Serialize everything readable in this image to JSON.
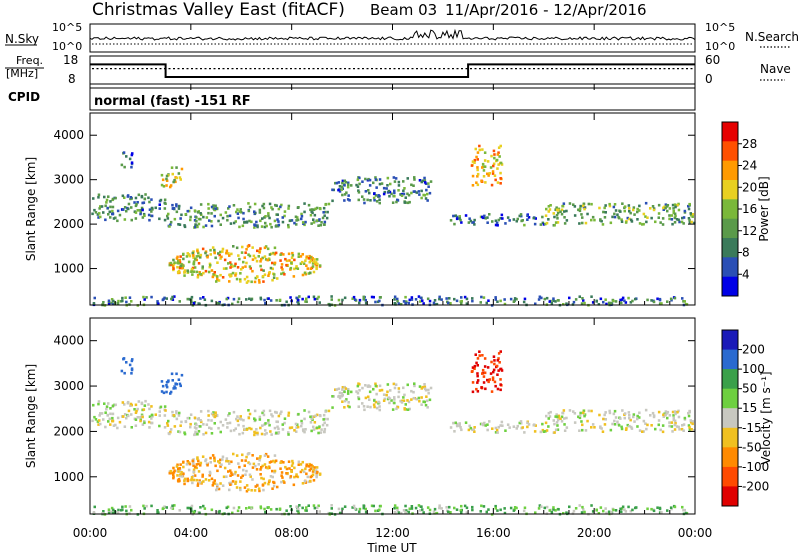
{
  "header": {
    "station": "Christmas Valley East (fitACF)",
    "beam": "Beam 03",
    "date_range": "11/Apr/2016 - 12/Apr/2016"
  },
  "noise_panel": {
    "left_label": "N.Sky",
    "right_label": "N.Search",
    "left_ticks": [
      "10^5",
      "10^0"
    ],
    "right_ticks": [
      "10^5",
      "10^0"
    ]
  },
  "freq_panel": {
    "left_label_1": "Freq.",
    "left_label_2": "[MHz]",
    "right_label": "Nave",
    "left_ticks": [
      "18",
      "8"
    ],
    "right_ticks": [
      "60",
      "0"
    ],
    "freq_steps": [
      {
        "start": 0.0,
        "end": 3.0,
        "value": 15
      },
      {
        "start": 3.0,
        "end": 15.0,
        "value": 10.5
      },
      {
        "start": 15.0,
        "end": 24.0,
        "value": 15
      }
    ],
    "nave_level": 0.55
  },
  "cpid": {
    "label": "CPID",
    "mode": "normal (fast) -151 RF"
  },
  "power_panel": {
    "ylabel": "Slant Range [km]",
    "yticks": [
      "4000",
      "3000",
      "2000",
      "1000"
    ],
    "colorbar_label": "Power [dB]",
    "colorbar_ticks": [
      "28",
      "24",
      "20",
      "16",
      "12",
      "8",
      "4"
    ],
    "colors": [
      "#0000e6",
      "#2a4fb5",
      "#3a7a5a",
      "#5a9a4a",
      "#7ab83a",
      "#e8d020",
      "#ff9a00",
      "#ff5000",
      "#e60000"
    ]
  },
  "velocity_panel": {
    "ylabel": "Slant Range [km]",
    "yticks": [
      "4000",
      "3000",
      "2000",
      "1000"
    ],
    "colorbar_label": "Velocity [m s⁻¹]",
    "colorbar_ticks": [
      "200",
      "100",
      "50",
      "15",
      "-15",
      "-50",
      "-100",
      "-200"
    ],
    "colors": [
      "#1a1ab8",
      "#2a6ad0",
      "#3aa04a",
      "#6ed040",
      "#c8c8c0",
      "#f0c020",
      "#ff8a00",
      "#ff4a00",
      "#e00000"
    ]
  },
  "xaxis": {
    "label": "Time UT",
    "ticks": [
      "00:00",
      "04:00",
      "08:00",
      "12:00",
      "16:00",
      "20:00",
      "00:00"
    ]
  },
  "chart_data": {
    "type": "heatmap",
    "title": "Christmas Valley East (fitACF) Beam 03 11/Apr/2016 - 12/Apr/2016",
    "xlabel": "Time UT",
    "ylabel": "Slant Range [km]",
    "xlim_hours": [
      0,
      24
    ],
    "ylim_km": [
      180,
      4500
    ],
    "scatter_regions": [
      {
        "t0": 0.0,
        "t1": 3.0,
        "r0": 2100,
        "r1": 2700,
        "power": 11,
        "velocity": 0
      },
      {
        "t0": 3.0,
        "t1": 9.5,
        "r0": 1950,
        "r1": 2500,
        "power": 12,
        "velocity": 0
      },
      {
        "t0": 9.5,
        "t1": 13.5,
        "r0": 2500,
        "r1": 3100,
        "power": 10,
        "velocity": 0
      },
      {
        "t0": 14.0,
        "t1": 18.0,
        "r0": 2000,
        "r1": 2250,
        "power": 10,
        "velocity": 0
      },
      {
        "t0": 18.0,
        "t1": 24.0,
        "r0": 2000,
        "r1": 2500,
        "power": 13,
        "velocity": 0
      },
      {
        "t0": 3.1,
        "t1": 9.1,
        "r0": 700,
        "r1": 1550,
        "power": 20,
        "velocity": -30
      },
      {
        "t0": 1.2,
        "t1": 1.7,
        "r0": 3300,
        "r1": 3650,
        "power": 8,
        "velocity": 120
      },
      {
        "t0": 2.8,
        "t1": 3.6,
        "r0": 2800,
        "r1": 3300,
        "power": 18,
        "velocity": 120
      },
      {
        "t0": 15.1,
        "t1": 16.3,
        "r0": 2900,
        "r1": 3800,
        "power": 22,
        "velocity": -150
      },
      {
        "t0": 0.0,
        "t1": 24.0,
        "r0": 200,
        "r1": 400,
        "power": 10,
        "velocity": 30
      }
    ]
  }
}
